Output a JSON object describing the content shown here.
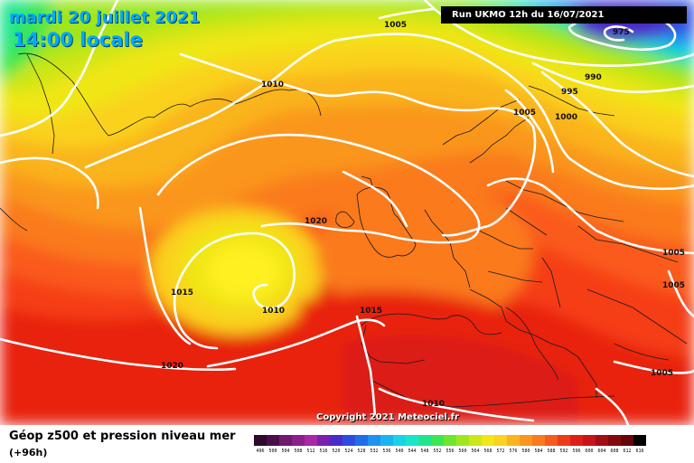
{
  "header": {
    "date": "mardi 20 juillet 2021",
    "local_time": "14:00 locale",
    "run": "Run UKMO 12h du 16/07/2021"
  },
  "copyright": "Copyright 2021 Meteociel.fr",
  "footer": {
    "title": "Géop z500 et pression niveau mer",
    "subtitle": "(+96h)"
  },
  "pressure_labels": [
    "1005",
    "975",
    "990",
    "995",
    "1010",
    "1005",
    "1000",
    "1020",
    "1005",
    "1015",
    "1010",
    "1015",
    "1005",
    "1020",
    "1005",
    "1010"
  ],
  "legend": {
    "values": [
      "496",
      "500",
      "504",
      "508",
      "512",
      "516",
      "520",
      "524",
      "528",
      "532",
      "536",
      "540",
      "544",
      "548",
      "552",
      "556",
      "560",
      "564",
      "568",
      "572",
      "576",
      "580",
      "584",
      "588",
      "592",
      "596",
      "600",
      "604",
      "608",
      "612",
      "616"
    ],
    "colors": [
      "#2e0a2e",
      "#4a0f4a",
      "#6e1a6e",
      "#8c1f8c",
      "#a828a8",
      "#7a1fb0",
      "#4b2ac8",
      "#2e4be0",
      "#1f6fe8",
      "#1f92f0",
      "#19b4f0",
      "#19d2e6",
      "#19e6c8",
      "#1fe68c",
      "#3ce650",
      "#6ee62e",
      "#a0e61f",
      "#cde619",
      "#f0e619",
      "#fad21f",
      "#fab41f",
      "#fa961f",
      "#fa7a1f",
      "#f55a1f",
      "#eb3c19",
      "#dc1f19",
      "#c81419",
      "#a00f14",
      "#820a0f",
      "#64060a",
      "#000000"
    ]
  }
}
